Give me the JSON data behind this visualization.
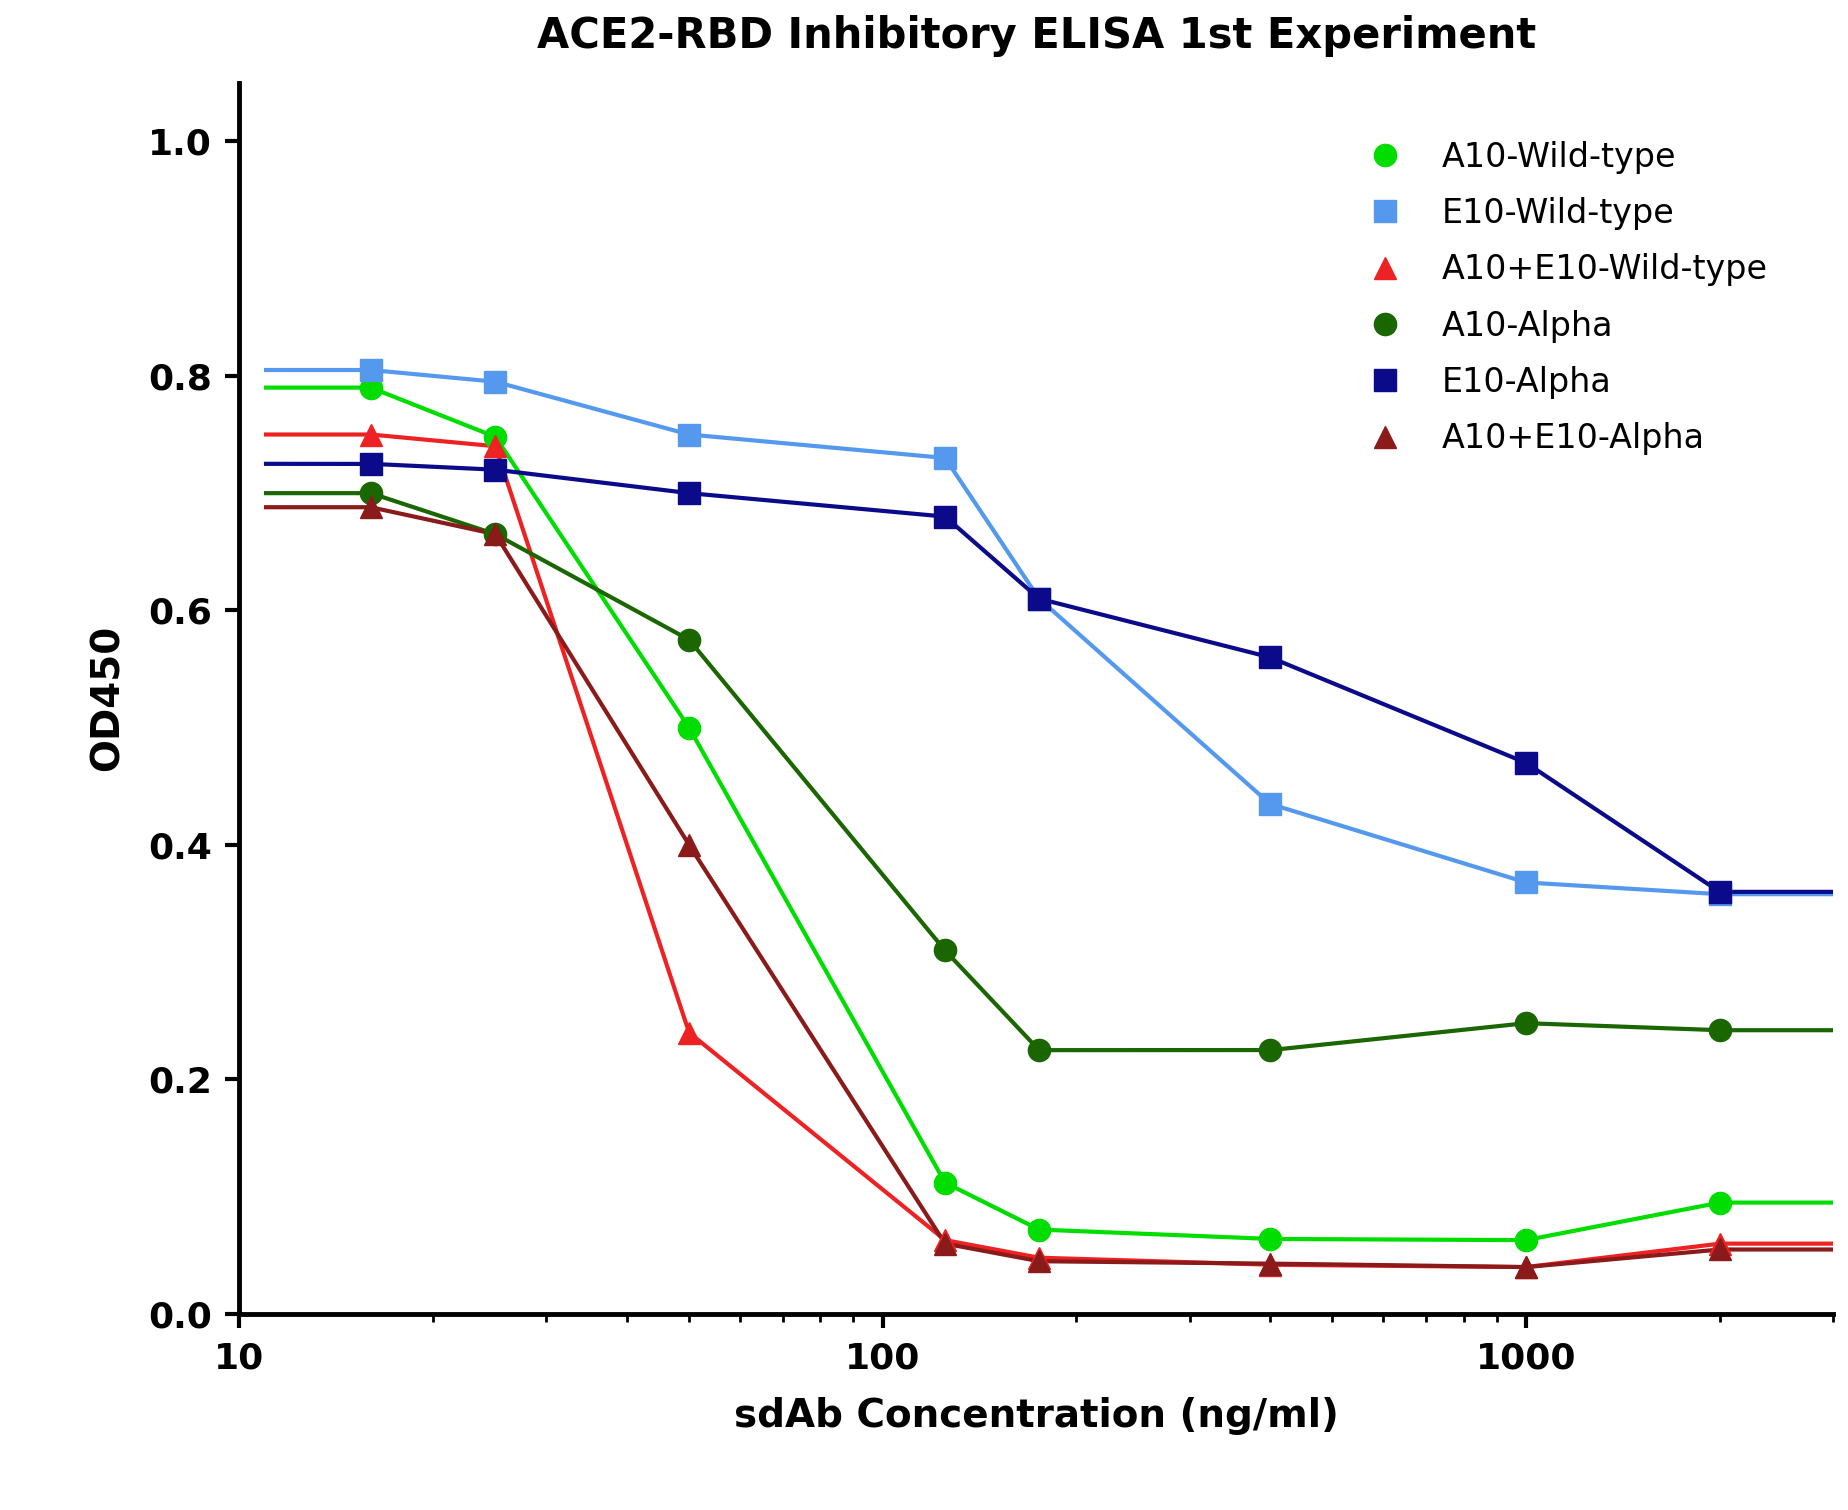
{
  "title": "ACE2-RBD Inhibitory ELISA 1st Experiment",
  "xlabel": "sdAb Concentration (ng/ml)",
  "ylabel": "OD450",
  "title_fontsize": 30,
  "label_fontsize": 28,
  "tick_fontsize": 26,
  "legend_fontsize": 24,
  "background_color": "#ffffff",
  "xlim": [
    10,
    3000
  ],
  "ylim": [
    0.0,
    1.05
  ],
  "series": [
    {
      "label": "A10-Wild-type",
      "color": "#00dd00",
      "marker": "o",
      "markersize": 16,
      "linewidth": 3.0,
      "x": [
        16,
        25,
        50,
        125,
        175,
        400,
        1000,
        2000
      ],
      "y": [
        0.79,
        0.748,
        0.5,
        0.112,
        0.072,
        0.064,
        0.063,
        0.095
      ]
    },
    {
      "label": "E10-Wild-type",
      "color": "#5599ee",
      "marker": "s",
      "markersize": 16,
      "linewidth": 3.0,
      "x": [
        16,
        25,
        50,
        125,
        175,
        400,
        1000,
        2000
      ],
      "y": [
        0.805,
        0.795,
        0.75,
        0.73,
        0.61,
        0.435,
        0.368,
        0.358
      ]
    },
    {
      "label": "A10+E10-Wild-type",
      "color": "#ee2222",
      "marker": "^",
      "markersize": 16,
      "linewidth": 3.0,
      "x": [
        16,
        25,
        50,
        125,
        175,
        400,
        1000,
        2000
      ],
      "y": [
        0.75,
        0.74,
        0.24,
        0.063,
        0.048,
        0.042,
        0.04,
        0.06
      ]
    },
    {
      "label": "A10-Alpha",
      "color": "#1a6600",
      "marker": "o",
      "markersize": 16,
      "linewidth": 3.0,
      "x": [
        16,
        25,
        50,
        125,
        175,
        400,
        1000,
        2000
      ],
      "y": [
        0.7,
        0.665,
        0.575,
        0.31,
        0.225,
        0.225,
        0.248,
        0.242
      ]
    },
    {
      "label": "E10-Alpha",
      "color": "#0a0a8a",
      "marker": "s",
      "markersize": 16,
      "linewidth": 3.0,
      "x": [
        16,
        25,
        50,
        125,
        175,
        400,
        1000,
        2000
      ],
      "y": [
        0.725,
        0.72,
        0.7,
        0.68,
        0.61,
        0.56,
        0.47,
        0.36
      ]
    },
    {
      "label": "A10+E10-Alpha",
      "color": "#8b1a1a",
      "marker": "^",
      "markersize": 16,
      "linewidth": 3.0,
      "x": [
        16,
        25,
        50,
        125,
        175,
        400,
        1000,
        2000
      ],
      "y": [
        0.688,
        0.665,
        0.4,
        0.06,
        0.045,
        0.043,
        0.04,
        0.055
      ]
    }
  ]
}
